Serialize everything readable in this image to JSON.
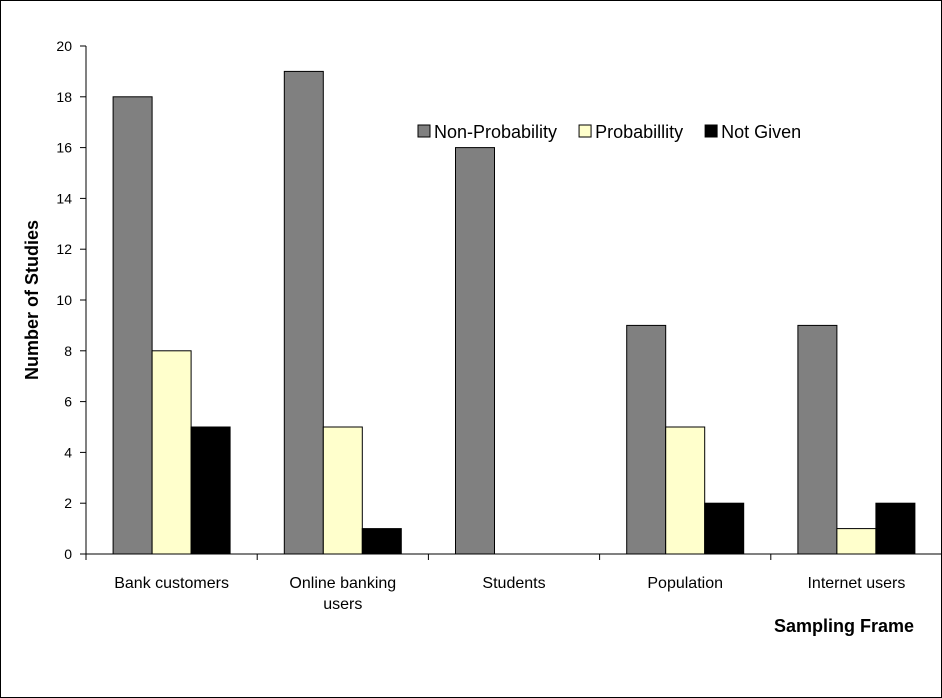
{
  "chart_data": {
    "type": "bar",
    "title": "",
    "xlabel": "Sampling Frame",
    "ylabel": "Number of Studies",
    "ylim": [
      0,
      20
    ],
    "yticks": [
      0,
      2,
      4,
      6,
      8,
      10,
      12,
      14,
      16,
      18,
      20
    ],
    "categories": [
      [
        "Bank customers"
      ],
      [
        "Online banking",
        "users"
      ],
      [
        "Students"
      ],
      [
        "Population"
      ],
      [
        "Internet users"
      ]
    ],
    "series": [
      {
        "name": "Non-Probability",
        "color": "#808080",
        "values": [
          18,
          19,
          16,
          9,
          9
        ]
      },
      {
        "name": "Probabillity",
        "color": "#ffffcc",
        "values": [
          8,
          5,
          0,
          5,
          1
        ]
      },
      {
        "name": "Not Given",
        "color": "#000000",
        "values": [
          5,
          1,
          0,
          2,
          2
        ]
      }
    ],
    "legend_position": "top-right",
    "grid": false
  }
}
